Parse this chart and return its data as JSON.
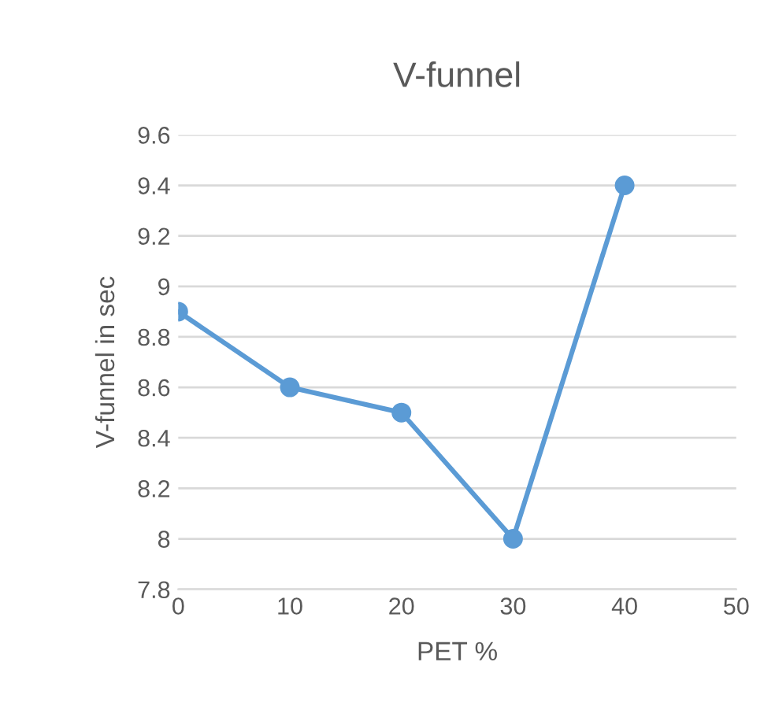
{
  "chart_data": {
    "type": "line",
    "title": "V-funnel",
    "xlabel": "PET %",
    "ylabel": "V-funnel in sec",
    "x": [
      0,
      10,
      20,
      30,
      40
    ],
    "series": [
      {
        "color": "#5b9bd5",
        "values": [
          8.9,
          8.6,
          8.5,
          8.0,
          9.4
        ]
      }
    ],
    "xlim": [
      0,
      50
    ],
    "xticks": [
      0,
      10,
      20,
      30,
      40,
      50
    ],
    "ylim": [
      7.8,
      9.6
    ],
    "yticks": [
      7.8,
      8,
      8.2,
      8.4,
      8.6,
      8.8,
      9,
      9.2,
      9.4,
      9.6
    ],
    "grid": "y",
    "marker": "circle",
    "line_style": "solid",
    "legend": false
  }
}
